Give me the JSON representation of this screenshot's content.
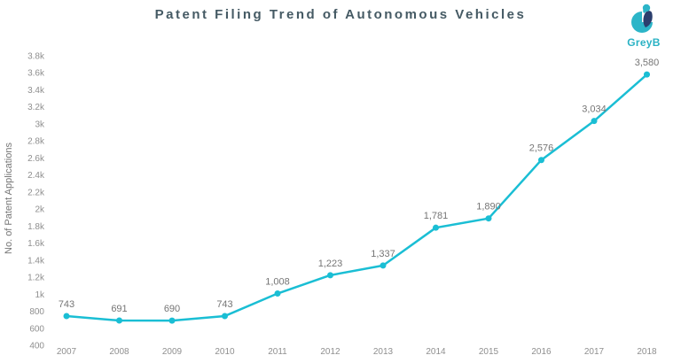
{
  "header": {
    "title": "Patent Filing Trend of Autonomous Vehicles",
    "title_color": "#455a64"
  },
  "logo": {
    "text": "GreyB",
    "teal": "#2cb5c8",
    "navy": "#2b3e6d",
    "text_color": "#29b2c4"
  },
  "chart_data": {
    "type": "line",
    "title": "Patent Filing Trend of Autonomous Vehicles",
    "xlabel": "",
    "ylabel": "No. of Patent Applications",
    "categories": [
      "2007",
      "2008",
      "2009",
      "2010",
      "2011",
      "2012",
      "2013",
      "2014",
      "2015",
      "2016",
      "2017",
      "2018"
    ],
    "values": [
      743,
      691,
      690,
      743,
      1008,
      1223,
      1337,
      1781,
      1890,
      2576,
      3034,
      3580
    ],
    "point_labels": [
      "743",
      "691",
      "690",
      "743",
      "1,008",
      "1,223",
      "1,337",
      "1,781",
      "1,890",
      "2,576",
      "3,034",
      "3,580"
    ],
    "y_tick_values": [
      400,
      600,
      800,
      1000,
      1200,
      1400,
      1600,
      1800,
      2000,
      2200,
      2400,
      2600,
      2800,
      3000,
      3200,
      3400,
      3600,
      3800
    ],
    "y_tick_labels": [
      "400",
      "600",
      "800",
      "1k",
      "1.2k",
      "1.4k",
      "1.6k",
      "1.8k",
      "2k",
      "2.2k",
      "2.4k",
      "2.6k",
      "2.8k",
      "3k",
      "3.2k",
      "3.4k",
      "3.6k",
      "3.8k"
    ],
    "ylim": [
      400,
      3800
    ],
    "grid": false,
    "legend": "none",
    "line_color": "#1abed4",
    "marker_color": "#1abed4",
    "label_color": "#757575",
    "tick_color": "#8f8f8f"
  }
}
